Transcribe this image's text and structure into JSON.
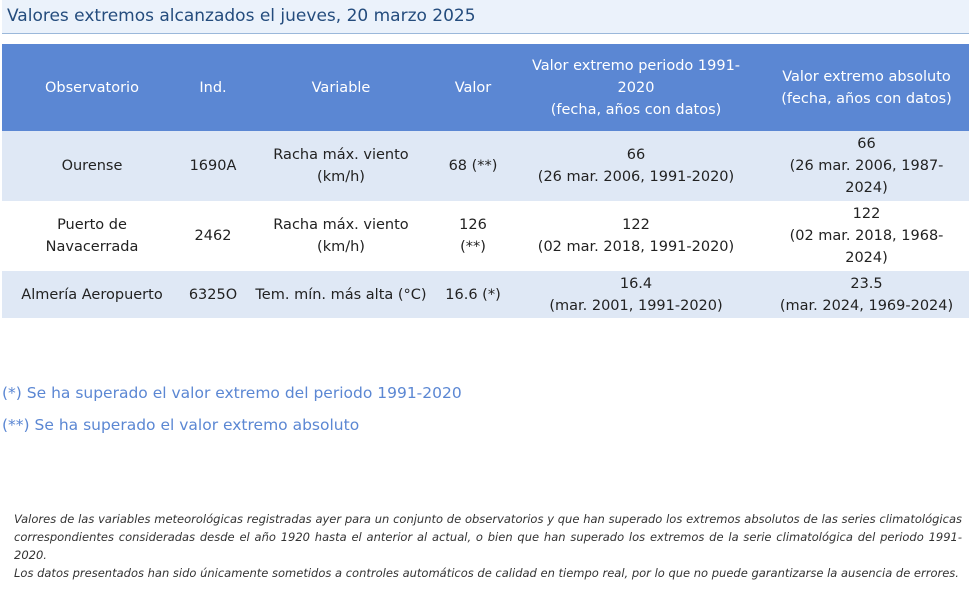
{
  "title": "Valores extremos alcanzados el jueves, 20 marzo 2025",
  "table": {
    "headers": [
      "Observatorio",
      "Ind.",
      "Variable",
      "Valor",
      "Valor extremo periodo 1991-\n2020\n(fecha, años con datos)",
      "Valor extremo absoluto\n(fecha, años con datos)"
    ],
    "rows": [
      {
        "observatorio": "Ourense",
        "ind": "1690A",
        "variable": "Racha máx. viento\n(km/h)",
        "valor": "68 (**)",
        "extremo_periodo": "66\n(26 mar. 2006, 1991-2020)",
        "extremo_absoluto": "66\n(26 mar. 2006, 1987-\n2024)"
      },
      {
        "observatorio": "Puerto de\nNavacerrada",
        "ind": "2462",
        "variable": "Racha máx. viento\n(km/h)",
        "valor": "126\n(**)",
        "extremo_periodo": "122\n(02 mar. 2018, 1991-2020)",
        "extremo_absoluto": "122\n(02 mar. 2018, 1968-\n2024)"
      },
      {
        "observatorio": "Almería Aeropuerto",
        "ind": "6325O",
        "variable": "Tem. mín. más alta (°C)",
        "valor": "16.6 (*)",
        "extremo_periodo": "16.4\n(mar. 2001, 1991-2020)",
        "extremo_absoluto": "23.5\n(mar. 2024, 1969-2024)"
      }
    ]
  },
  "notes": [
    "(*) Se ha superado el valor extremo del periodo 1991-2020",
    "(**) Se ha superado el valor extremo absoluto"
  ],
  "footer": [
    "Valores de las variables meteorológicas registradas ayer para un conjunto de observatorios y que han superado los extremos absolutos de las series climatológicas correspondientes consideradas desde el año 1920 hasta el anterior al actual, o bien que han superado los extremos de la serie climatológica del periodo 1991-2020.",
    "Los datos presentados han sido únicamente sometidos a controles automáticos de calidad en tiempo real, por lo que no puede garantizarse la ausencia de errores."
  ],
  "colors": {
    "header_bg": "#5b87d3",
    "row_alt_bg": "#dfe8f5",
    "title_text": "#244c7d",
    "note_text": "#5b87d3"
  }
}
